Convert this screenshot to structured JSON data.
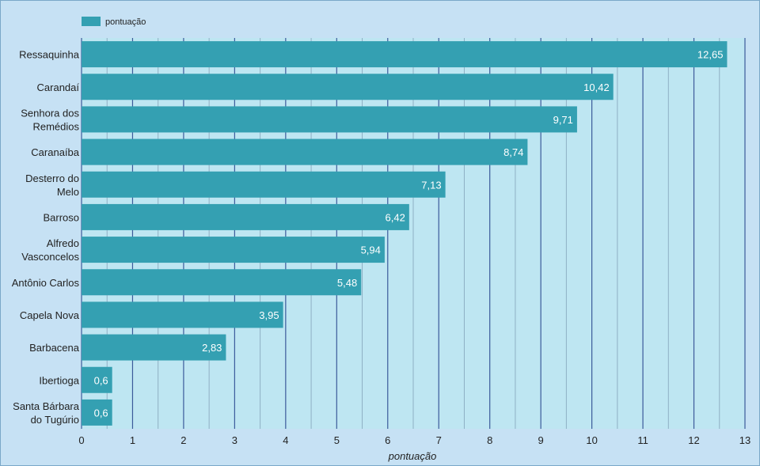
{
  "chart_data": {
    "type": "bar",
    "orientation": "horizontal",
    "categories": [
      "Ressaquinha",
      "Carandaí",
      "Senhora dos Remédios",
      "Caranaíba",
      "Desterro do Melo",
      "Barroso",
      "Alfredo Vasconcelos",
      "Antônio Carlos",
      "Capela Nova",
      "Barbacena",
      "Ibertioga",
      "Santa Bárbara do Tugúrio"
    ],
    "category_lines": [
      [
        "Ressaquinha"
      ],
      [
        "Carandaí"
      ],
      [
        "Senhora dos",
        "Remédios"
      ],
      [
        "Caranaíba"
      ],
      [
        "Desterro do",
        "Melo"
      ],
      [
        "Barroso"
      ],
      [
        "Alfredo",
        "Vasconcelos"
      ],
      [
        "Antônio Carlos"
      ],
      [
        "Capela Nova"
      ],
      [
        "Barbacena"
      ],
      [
        "Ibertioga"
      ],
      [
        "Santa Bárbara",
        "do Tugúrio"
      ]
    ],
    "series": [
      {
        "name": "pontuação",
        "values": [
          12.65,
          10.42,
          9.71,
          8.74,
          7.13,
          6.42,
          5.94,
          5.48,
          3.95,
          2.83,
          0.6,
          0.6
        ],
        "labels": [
          "12,65",
          "10,42",
          "9,71",
          "8,74",
          "7,13",
          "6,42",
          "5,94",
          "5,48",
          "3,95",
          "2,83",
          "0,6",
          "0,6"
        ]
      }
    ],
    "xlabel": "pontuação",
    "ylabel": "",
    "xlim": [
      0,
      13
    ],
    "xticks": [
      0,
      1,
      2,
      3,
      4,
      5,
      6,
      7,
      8,
      9,
      10,
      11,
      12,
      13
    ],
    "grid": true,
    "legend_position": "top-left",
    "colors": {
      "bar": "#34a0b2",
      "plot_background": "#bee6f2",
      "page_background": "#c6e1f4",
      "major_grid": "#3b5a9a",
      "minor_grid": "#8fb0c4"
    }
  }
}
